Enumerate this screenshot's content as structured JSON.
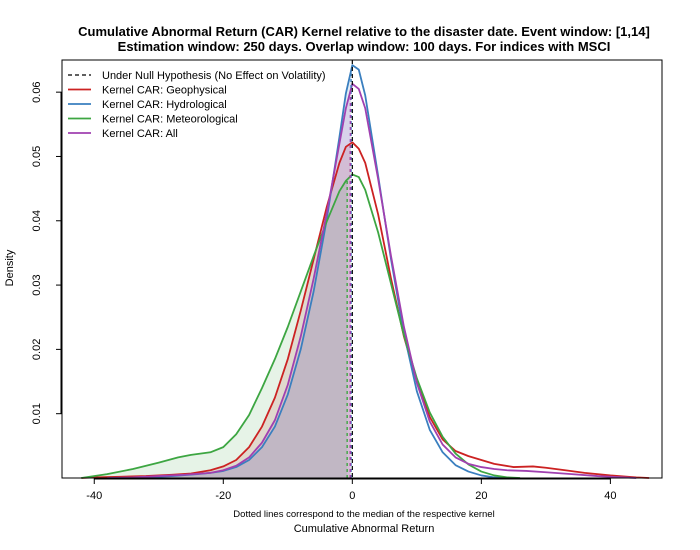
{
  "chart_data": {
    "type": "area",
    "title": "Cumulative Abnormal Return (CAR) Kernel relative to the disaster date. Event window: [1,14]",
    "subtitle": "Estimation window: 250 days. Overlap window: 100 days. For indices with MSCI",
    "xlabel": "Cumulative Abnormal Return",
    "x_note": "Dotted lines correspond to the median of the respective kernel",
    "ylabel": "Density",
    "xlim": [
      -45,
      48
    ],
    "ylim": [
      0,
      0.065
    ],
    "x_ticks": [
      -40,
      -20,
      0,
      20,
      40
    ],
    "y_ticks": [
      0.01,
      0.02,
      0.03,
      0.04,
      0.05,
      0.06
    ],
    "x_tick_labels": [
      "-40",
      "-20",
      "0",
      "20",
      "40"
    ],
    "y_tick_labels": [
      "0.01",
      "0.02",
      "0.03",
      "0.04",
      "0.05",
      "0.06"
    ],
    "null_line": {
      "name": "Under Null Hypothesis (No Effect on Volatility)",
      "x": 0,
      "color": "#000000"
    },
    "legend_position": "top-left",
    "series": [
      {
        "name": "Kernel CAR: Geophysical",
        "color": "#cc2222",
        "fill": "rgba(204,34,34,0.13)",
        "median": -0.3,
        "points": [
          [
            -42,
            0
          ],
          [
            -40,
            0.0001
          ],
          [
            -36,
            0.0002
          ],
          [
            -32,
            0.0003
          ],
          [
            -28,
            0.0005
          ],
          [
            -25,
            0.0007
          ],
          [
            -22,
            0.0012
          ],
          [
            -20,
            0.0018
          ],
          [
            -18,
            0.0028
          ],
          [
            -16,
            0.0048
          ],
          [
            -14,
            0.008
          ],
          [
            -12,
            0.0125
          ],
          [
            -10,
            0.0185
          ],
          [
            -8,
            0.026
          ],
          [
            -6,
            0.034
          ],
          [
            -4,
            0.042
          ],
          [
            -2,
            0.049
          ],
          [
            -1,
            0.0515
          ],
          [
            0,
            0.0522
          ],
          [
            1,
            0.0512
          ],
          [
            2,
            0.049
          ],
          [
            4,
            0.041
          ],
          [
            6,
            0.031
          ],
          [
            8,
            0.022
          ],
          [
            10,
            0.015
          ],
          [
            12,
            0.0095
          ],
          [
            14,
            0.006
          ],
          [
            16,
            0.0042
          ],
          [
            18,
            0.0034
          ],
          [
            20,
            0.0028
          ],
          [
            22,
            0.0022
          ],
          [
            25,
            0.0017
          ],
          [
            28,
            0.0018
          ],
          [
            30,
            0.0016
          ],
          [
            33,
            0.0012
          ],
          [
            36,
            0.0008
          ],
          [
            40,
            0.0004
          ],
          [
            44,
            0.0001
          ],
          [
            46,
            0
          ]
        ]
      },
      {
        "name": "Kernel CAR: Hydrological",
        "color": "#3a7fbf",
        "fill": "rgba(58,127,191,0.15)",
        "median": -0.2,
        "points": [
          [
            -35,
            0
          ],
          [
            -32,
            0.0001
          ],
          [
            -28,
            0.0003
          ],
          [
            -24,
            0.0006
          ],
          [
            -22,
            0.0008
          ],
          [
            -20,
            0.0011
          ],
          [
            -18,
            0.0017
          ],
          [
            -16,
            0.0028
          ],
          [
            -14,
            0.0048
          ],
          [
            -12,
            0.008
          ],
          [
            -10,
            0.013
          ],
          [
            -8,
            0.02
          ],
          [
            -6,
            0.029
          ],
          [
            -4,
            0.04
          ],
          [
            -2,
            0.053
          ],
          [
            -1,
            0.0598
          ],
          [
            0,
            0.0642
          ],
          [
            1,
            0.0635
          ],
          [
            2,
            0.0595
          ],
          [
            4,
            0.047
          ],
          [
            6,
            0.034
          ],
          [
            8,
            0.0225
          ],
          [
            10,
            0.0135
          ],
          [
            12,
            0.0075
          ],
          [
            14,
            0.004
          ],
          [
            16,
            0.002
          ],
          [
            18,
            0.001
          ],
          [
            20,
            0.0004
          ],
          [
            22,
            0.0001
          ],
          [
            24,
            0
          ]
        ]
      },
      {
        "name": "Kernel CAR: Meteorological",
        "color": "#3da642",
        "fill": "rgba(61,166,66,0.13)",
        "median": -0.8,
        "points": [
          [
            -42,
            0
          ],
          [
            -38,
            0.0006
          ],
          [
            -34,
            0.0014
          ],
          [
            -30,
            0.0024
          ],
          [
            -27,
            0.0032
          ],
          [
            -25,
            0.0036
          ],
          [
            -22,
            0.004
          ],
          [
            -20,
            0.0048
          ],
          [
            -18,
            0.0068
          ],
          [
            -16,
            0.0098
          ],
          [
            -14,
            0.014
          ],
          [
            -12,
            0.0185
          ],
          [
            -10,
            0.0235
          ],
          [
            -8,
            0.029
          ],
          [
            -6,
            0.0345
          ],
          [
            -4,
            0.0398
          ],
          [
            -2,
            0.0446
          ],
          [
            -1,
            0.0462
          ],
          [
            0,
            0.0472
          ],
          [
            1,
            0.0468
          ],
          [
            2,
            0.0448
          ],
          [
            4,
            0.0382
          ],
          [
            6,
            0.0302
          ],
          [
            8,
            0.0222
          ],
          [
            10,
            0.0155
          ],
          [
            12,
            0.0102
          ],
          [
            14,
            0.0064
          ],
          [
            16,
            0.0038
          ],
          [
            18,
            0.0021
          ],
          [
            20,
            0.001
          ],
          [
            22,
            0.0004
          ],
          [
            24,
            0.0001
          ],
          [
            26,
            0
          ]
        ]
      },
      {
        "name": "Kernel CAR: All",
        "color": "#a040b0",
        "fill": "rgba(160,64,176,0.15)",
        "median": -0.3,
        "points": [
          [
            -38,
            0
          ],
          [
            -34,
            0.0001
          ],
          [
            -30,
            0.0003
          ],
          [
            -26,
            0.0005
          ],
          [
            -22,
            0.0008
          ],
          [
            -20,
            0.0012
          ],
          [
            -18,
            0.0019
          ],
          [
            -16,
            0.0032
          ],
          [
            -14,
            0.0055
          ],
          [
            -12,
            0.009
          ],
          [
            -10,
            0.0145
          ],
          [
            -8,
            0.022
          ],
          [
            -6,
            0.031
          ],
          [
            -4,
            0.041
          ],
          [
            -2,
            0.052
          ],
          [
            -1,
            0.0575
          ],
          [
            0,
            0.0613
          ],
          [
            1,
            0.0605
          ],
          [
            2,
            0.0575
          ],
          [
            4,
            0.0465
          ],
          [
            6,
            0.0345
          ],
          [
            8,
            0.0235
          ],
          [
            10,
            0.0148
          ],
          [
            12,
            0.0088
          ],
          [
            14,
            0.0052
          ],
          [
            16,
            0.0032
          ],
          [
            18,
            0.0022
          ],
          [
            20,
            0.0017
          ],
          [
            22,
            0.0014
          ],
          [
            24,
            0.0012
          ],
          [
            27,
            0.0011
          ],
          [
            30,
            0.0009
          ],
          [
            34,
            0.0006
          ],
          [
            38,
            0.0003
          ],
          [
            42,
            0.0001
          ],
          [
            44,
            0
          ]
        ]
      }
    ]
  }
}
